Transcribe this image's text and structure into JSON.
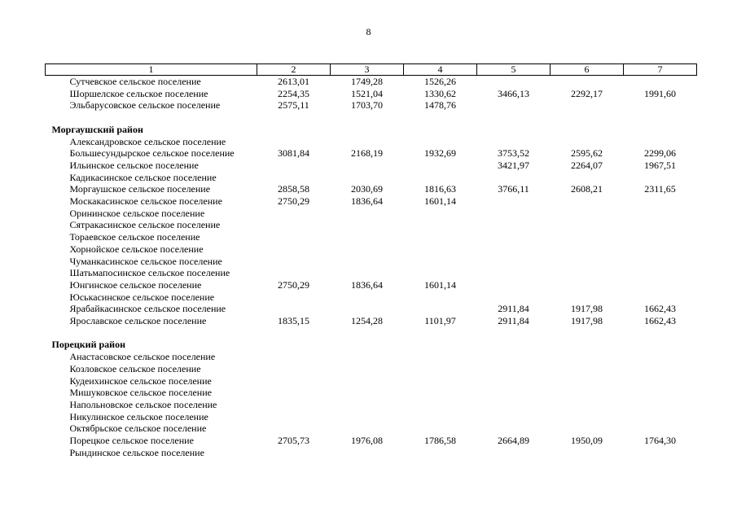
{
  "page": {
    "number": "8"
  },
  "table": {
    "header": [
      "1",
      "2",
      "3",
      "4",
      "5",
      "6",
      "7"
    ],
    "rows": [
      {
        "type": "item",
        "name": "Сутчевское сельское поселение",
        "values": [
          "2613,01",
          "1749,28",
          "1526,26",
          "",
          "",
          ""
        ]
      },
      {
        "type": "item",
        "name": "Шоршелское сельское поселение",
        "values": [
          "2254,35",
          "1521,04",
          "1330,62",
          "3466,13",
          "2292,17",
          "1991,60"
        ]
      },
      {
        "type": "item",
        "name": "Эльбарусовское сельское поселение",
        "values": [
          "2575,11",
          "1703,70",
          "1478,76",
          "",
          "",
          ""
        ]
      },
      {
        "type": "spacer"
      },
      {
        "type": "group",
        "name": "Моргаушский район",
        "values": [
          "",
          "",
          "",
          "",
          "",
          ""
        ]
      },
      {
        "type": "item",
        "name": "Александровское сельское поселение",
        "values": [
          "",
          "",
          "",
          "",
          "",
          ""
        ]
      },
      {
        "type": "item",
        "name": "Большесундырское сельское поселение",
        "values": [
          "3081,84",
          "2168,19",
          "1932,69",
          "3753,52",
          "2595,62",
          "2299,06"
        ]
      },
      {
        "type": "item",
        "name": "Ильинское сельское поселение",
        "values": [
          "",
          "",
          "",
          "3421,97",
          "2264,07",
          "1967,51"
        ]
      },
      {
        "type": "item",
        "name": "Кадикасинское сельское поселение",
        "values": [
          "",
          "",
          "",
          "",
          "",
          ""
        ]
      },
      {
        "type": "item",
        "name": "Моргаушское сельское поселение",
        "values": [
          "2858,58",
          "2030,69",
          "1816,63",
          "3766,11",
          "2608,21",
          "2311,65"
        ]
      },
      {
        "type": "item",
        "name": "Москакасинское сельское поселение",
        "values": [
          "2750,29",
          "1836,64",
          "1601,14",
          "",
          "",
          ""
        ]
      },
      {
        "type": "item",
        "name": "Орининское сельское поселение",
        "values": [
          "",
          "",
          "",
          "",
          "",
          ""
        ]
      },
      {
        "type": "item",
        "name": "Сятракасинское сельское поселение",
        "values": [
          "",
          "",
          "",
          "",
          "",
          ""
        ]
      },
      {
        "type": "item",
        "name": "Тораевское сельское поселение",
        "values": [
          "",
          "",
          "",
          "",
          "",
          ""
        ]
      },
      {
        "type": "item",
        "name": "Хорнойское сельское поселение",
        "values": [
          "",
          "",
          "",
          "",
          "",
          ""
        ]
      },
      {
        "type": "item",
        "name": "Чуманкасинское сельское поселение",
        "values": [
          "",
          "",
          "",
          "",
          "",
          ""
        ]
      },
      {
        "type": "item",
        "name": "Шатьмапосинское сельское поселение",
        "values": [
          "",
          "",
          "",
          "",
          "",
          ""
        ]
      },
      {
        "type": "item",
        "name": "Юнгинское сельское поселение",
        "values": [
          "2750,29",
          "1836,64",
          "1601,14",
          "",
          "",
          ""
        ]
      },
      {
        "type": "item",
        "name": "Юськасинское сельское поселение",
        "values": [
          "",
          "",
          "",
          "",
          "",
          ""
        ]
      },
      {
        "type": "item",
        "name": "Ярабайкасинское сельское поселение",
        "values": [
          "",
          "",
          "",
          "2911,84",
          "1917,98",
          "1662,43"
        ]
      },
      {
        "type": "item",
        "name": "Ярославское сельское поселение",
        "values": [
          "1835,15",
          "1254,28",
          "1101,97",
          "2911,84",
          "1917,98",
          "1662,43"
        ]
      },
      {
        "type": "spacer"
      },
      {
        "type": "group",
        "name": "Порецкий район",
        "values": [
          "",
          "",
          "",
          "",
          "",
          ""
        ]
      },
      {
        "type": "item",
        "name": "Анастасовское сельское поселение",
        "values": [
          "",
          "",
          "",
          "",
          "",
          ""
        ]
      },
      {
        "type": "item",
        "name": "Козловское сельское поселение",
        "values": [
          "",
          "",
          "",
          "",
          "",
          ""
        ]
      },
      {
        "type": "item",
        "name": "Кудеихинское сельское поселение",
        "values": [
          "",
          "",
          "",
          "",
          "",
          ""
        ]
      },
      {
        "type": "item",
        "name": "Мишуковское сельское поселение",
        "values": [
          "",
          "",
          "",
          "",
          "",
          ""
        ]
      },
      {
        "type": "item",
        "name": "Напольновское сельское поселение",
        "values": [
          "",
          "",
          "",
          "",
          "",
          ""
        ]
      },
      {
        "type": "item",
        "name": "Никулинское сельское поселение",
        "values": [
          "",
          "",
          "",
          "",
          "",
          ""
        ]
      },
      {
        "type": "item",
        "name": "Октябрьское сельское поселение",
        "values": [
          "",
          "",
          "",
          "",
          "",
          ""
        ]
      },
      {
        "type": "item",
        "name": "Порецкое сельское поселение",
        "values": [
          "2705,73",
          "1976,08",
          "1786,58",
          "2664,89",
          "1950,09",
          "1764,30"
        ]
      },
      {
        "type": "item",
        "name": "Рындинское сельское поселение",
        "values": [
          "",
          "",
          "",
          "",
          "",
          ""
        ]
      }
    ]
  }
}
